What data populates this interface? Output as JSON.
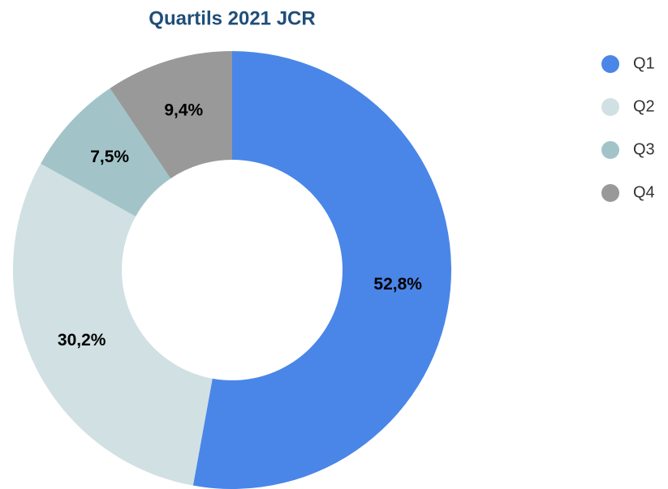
{
  "chart_data": {
    "type": "donut",
    "title": "Quartils 2021 JCR",
    "categories": [
      "Q1",
      "Q2",
      "Q3",
      "Q4"
    ],
    "values": [
      52.8,
      30.2,
      7.5,
      9.4
    ],
    "value_labels": [
      "52,8%",
      "30,2%",
      "7,5%",
      "9,4%"
    ],
    "colors": [
      "#4a86e8",
      "#d0e0e3",
      "#a2c4c9",
      "#999999"
    ],
    "legend": "right"
  }
}
